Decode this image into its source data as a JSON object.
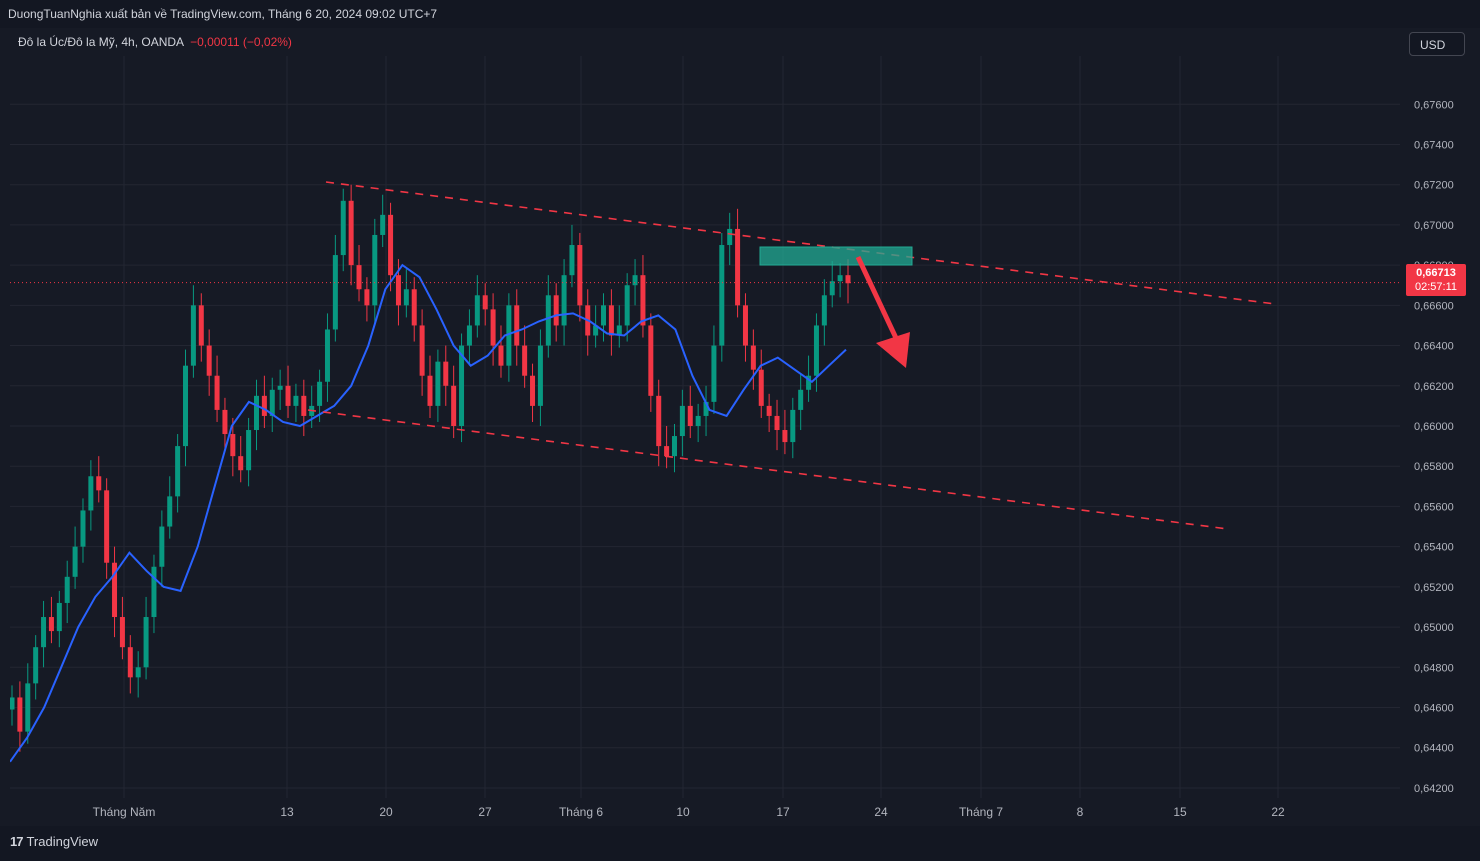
{
  "header": {
    "publisher_line": "DuongTuanNghia xuất bản về TradingView.com, Tháng 6 20, 2024 09:02 UTC+7"
  },
  "legend": {
    "symbol": "Đô la Úc/Đô la Mỹ, 4h, OANDA",
    "change": "−0,00011 (−0,02%)"
  },
  "currency_button": "USD",
  "price_tag": {
    "value": "0,66713",
    "countdown": "02:57:11"
  },
  "brand": {
    "logo": "17",
    "name": "TradingView"
  },
  "colors": {
    "background": "#161a25",
    "grid": "#232632",
    "bullish": "#089981",
    "bearish": "#f23645",
    "moving_average": "#2962ff",
    "trendline": "#f23645",
    "zone": "#22ab94"
  },
  "chart_data": {
    "type": "line",
    "series": [
      {
        "values": [
          0.6465,
          0.6448,
          0.6472,
          0.649,
          0.6505,
          0.6498,
          0.6512,
          0.6525,
          0.654,
          0.6558,
          0.6575,
          0.6568,
          0.6532,
          0.6505,
          0.649,
          0.6475,
          0.648,
          0.6505,
          0.653,
          0.655,
          0.6565,
          0.659,
          0.663,
          0.666,
          0.664,
          0.6625,
          0.6608,
          0.6596,
          0.6585,
          0.6578,
          0.6598,
          0.6615,
          0.6605,
          0.6618,
          0.662,
          0.661,
          0.6615,
          0.6605,
          0.661,
          0.6622,
          0.6648,
          0.6685,
          0.6712,
          0.668,
          0.6668,
          0.666,
          0.6695,
          0.6705,
          0.6675,
          0.666,
          0.6668,
          0.665,
          0.6625,
          0.661,
          0.6632,
          0.662,
          0.66,
          0.664,
          0.665,
          0.6665,
          0.6658,
          0.664,
          0.663,
          0.666,
          0.664,
          0.6625,
          0.661,
          0.664,
          0.6665,
          0.665,
          0.6675,
          0.669,
          0.666,
          0.6645,
          0.665,
          0.666,
          0.6645,
          0.665,
          0.667,
          0.6675,
          0.665,
          0.6615,
          0.659,
          0.6585,
          0.6595,
          0.661,
          0.66,
          0.6605,
          0.6612,
          0.664,
          0.669,
          0.6698,
          0.666,
          0.664,
          0.6628,
          0.661,
          0.6605,
          0.6598,
          0.6592,
          0.6608,
          0.6618,
          0.6625,
          0.665,
          0.6665,
          0.6672,
          0.6675,
          0.6671
        ]
      },
      {
        "values": [
          0.6433,
          0.6445,
          0.646,
          0.648,
          0.65,
          0.6515,
          0.6525,
          0.6537,
          0.6528,
          0.652,
          0.6518,
          0.654,
          0.657,
          0.66,
          0.6612,
          0.6608,
          0.6602,
          0.66,
          0.6605,
          0.661,
          0.662,
          0.664,
          0.6668,
          0.668,
          0.6674,
          0.6658,
          0.664,
          0.663,
          0.6635,
          0.6645,
          0.6648,
          0.6652,
          0.6655,
          0.6656,
          0.6652,
          0.6646,
          0.6645,
          0.6652,
          0.6655,
          0.6648,
          0.6625,
          0.6608,
          0.6605,
          0.6618,
          0.663,
          0.6634,
          0.6628,
          0.6622,
          0.663,
          0.6638
        ]
      }
    ],
    "ylim": [
      0.6415,
      0.6784
    ],
    "y_ticks": [
      "0,67600",
      "0,67400",
      "0,67200",
      "0,67000",
      "0,66800",
      "0,66600",
      "0,66400",
      "0,66200",
      "0,66000",
      "0,65800",
      "0,65600",
      "0,65400",
      "0,65200",
      "0,65000",
      "0,64800",
      "0,64600",
      "0,64400",
      "0,64200"
    ],
    "x_ticks": [
      "Tháng Năm",
      "13",
      "20",
      "27",
      "Tháng 6",
      "10",
      "17",
      "24",
      "Tháng 7",
      "8",
      "15",
      "22"
    ],
    "last_price": 0.66713,
    "grid": true
  }
}
